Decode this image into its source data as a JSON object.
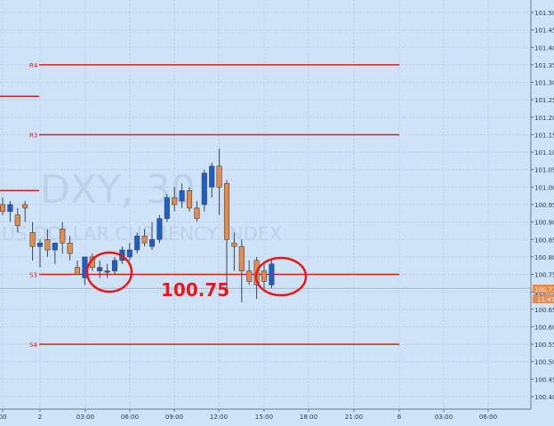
{
  "chart_data": {
    "type": "candlestick",
    "symbol_watermark": "DXY, 30",
    "watermark_sub": "US DOLLAR CURRENCY INDEX",
    "ylim": [
      100.35,
      101.55
    ],
    "y_ticks": [
      "101.50",
      "101.45",
      "101.40",
      "101.35",
      "101.30",
      "101.25",
      "101.20",
      "101.15",
      "101.10",
      "101.05",
      "101.00",
      "100.95",
      "100.90",
      "100.85",
      "100.80",
      "100.75",
      "100.70",
      "100.65",
      "100.60",
      "100.55",
      "100.50",
      "100.45",
      "100.40"
    ],
    "x_ticks": [
      "00",
      "2",
      "03:00",
      "06:00",
      "09:00",
      "12:00",
      "15:00",
      "18:00",
      "21:00",
      "6",
      "03:00",
      "06:00"
    ],
    "pivot_levels": [
      {
        "label": "R4",
        "value": 101.35
      },
      {
        "label": "R3",
        "value": 101.15
      },
      {
        "label": "S3",
        "value": 100.75
      },
      {
        "label": "S4",
        "value": 100.55
      }
    ],
    "prior_levels": [
      101.26,
      100.99
    ],
    "annotation": "100.75",
    "current_price": "100.71",
    "current_time": "11:47",
    "candles": [
      {
        "o": 100.95,
        "h": 100.97,
        "l": 100.92,
        "c": 100.93
      },
      {
        "o": 100.93,
        "h": 100.96,
        "l": 100.9,
        "c": 100.95
      },
      {
        "o": 100.92,
        "h": 100.94,
        "l": 100.87,
        "c": 100.89
      },
      {
        "o": 100.95,
        "h": 100.96,
        "l": 100.9,
        "c": 100.94
      },
      {
        "o": 100.87,
        "h": 100.9,
        "l": 100.79,
        "c": 100.83
      },
      {
        "o": 100.83,
        "h": 100.85,
        "l": 100.77,
        "c": 100.84
      },
      {
        "o": 100.85,
        "h": 100.88,
        "l": 100.8,
        "c": 100.82
      },
      {
        "o": 100.82,
        "h": 100.84,
        "l": 100.78,
        "c": 100.84
      },
      {
        "o": 100.88,
        "h": 100.9,
        "l": 100.81,
        "c": 100.84
      },
      {
        "o": 100.84,
        "h": 100.86,
        "l": 100.79,
        "c": 100.81
      },
      {
        "o": 100.77,
        "h": 100.79,
        "l": 100.75,
        "c": 100.75
      },
      {
        "o": 100.74,
        "h": 100.8,
        "l": 100.72,
        "c": 100.8
      },
      {
        "o": 100.8,
        "h": 100.81,
        "l": 100.76,
        "c": 100.77
      },
      {
        "o": 100.76,
        "h": 100.79,
        "l": 100.74,
        "c": 100.77
      },
      {
        "o": 100.76,
        "h": 100.78,
        "l": 100.74,
        "c": 100.76
      },
      {
        "o": 100.76,
        "h": 100.8,
        "l": 100.75,
        "c": 100.79
      },
      {
        "o": 100.79,
        "h": 100.83,
        "l": 100.78,
        "c": 100.82
      },
      {
        "o": 100.8,
        "h": 100.84,
        "l": 100.79,
        "c": 100.82
      },
      {
        "o": 100.82,
        "h": 100.87,
        "l": 100.81,
        "c": 100.86
      },
      {
        "o": 100.86,
        "h": 100.88,
        "l": 100.83,
        "c": 100.84
      },
      {
        "o": 100.83,
        "h": 100.9,
        "l": 100.82,
        "c": 100.85
      },
      {
        "o": 100.85,
        "h": 100.92,
        "l": 100.84,
        "c": 100.91
      },
      {
        "o": 100.91,
        "h": 100.98,
        "l": 100.9,
        "c": 100.97
      },
      {
        "o": 100.97,
        "h": 101.0,
        "l": 100.93,
        "c": 100.95
      },
      {
        "o": 100.96,
        "h": 101.01,
        "l": 100.94,
        "c": 100.99
      },
      {
        "o": 100.99,
        "h": 101.0,
        "l": 100.93,
        "c": 100.94
      },
      {
        "o": 100.94,
        "h": 100.96,
        "l": 100.9,
        "c": 100.91
      },
      {
        "o": 100.95,
        "h": 101.05,
        "l": 100.93,
        "c": 101.04
      },
      {
        "o": 101.0,
        "h": 101.07,
        "l": 100.97,
        "c": 101.06
      },
      {
        "o": 101.06,
        "h": 101.11,
        "l": 100.92,
        "c": 101.0
      },
      {
        "o": 101.01,
        "h": 101.02,
        "l": 100.7,
        "c": 100.85
      },
      {
        "o": 100.84,
        "h": 100.87,
        "l": 100.76,
        "c": 100.83
      },
      {
        "o": 100.83,
        "h": 100.85,
        "l": 100.67,
        "c": 100.76
      },
      {
        "o": 100.76,
        "h": 100.79,
        "l": 100.72,
        "c": 100.73
      },
      {
        "o": 100.79,
        "h": 100.8,
        "l": 100.68,
        "c": 100.72
      },
      {
        "o": 100.76,
        "h": 100.78,
        "l": 100.71,
        "c": 100.73
      },
      {
        "o": 100.72,
        "h": 100.79,
        "l": 100.71,
        "c": 100.78
      }
    ]
  },
  "axis": {
    "price_badge": "100.71",
    "time_badge": "11:47"
  }
}
